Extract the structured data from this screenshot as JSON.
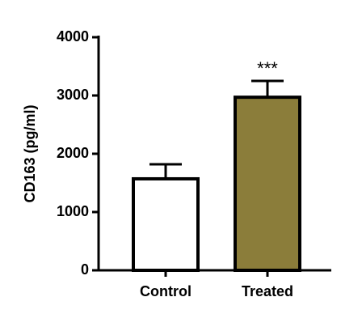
{
  "chart_data": {
    "type": "bar",
    "y_label": "CD163 (pg/ml)",
    "categories": [
      "Control",
      "Treated"
    ],
    "values": [
      1570,
      2970
    ],
    "errors": [
      250,
      280
    ],
    "colors": [
      "#ffffff",
      "#8b7d3a"
    ],
    "ylim": [
      0,
      4000
    ],
    "yticks": [
      0,
      1000,
      2000,
      3000,
      4000
    ],
    "annotations": [
      {
        "text": "***",
        "x": "Treated"
      }
    ]
  }
}
